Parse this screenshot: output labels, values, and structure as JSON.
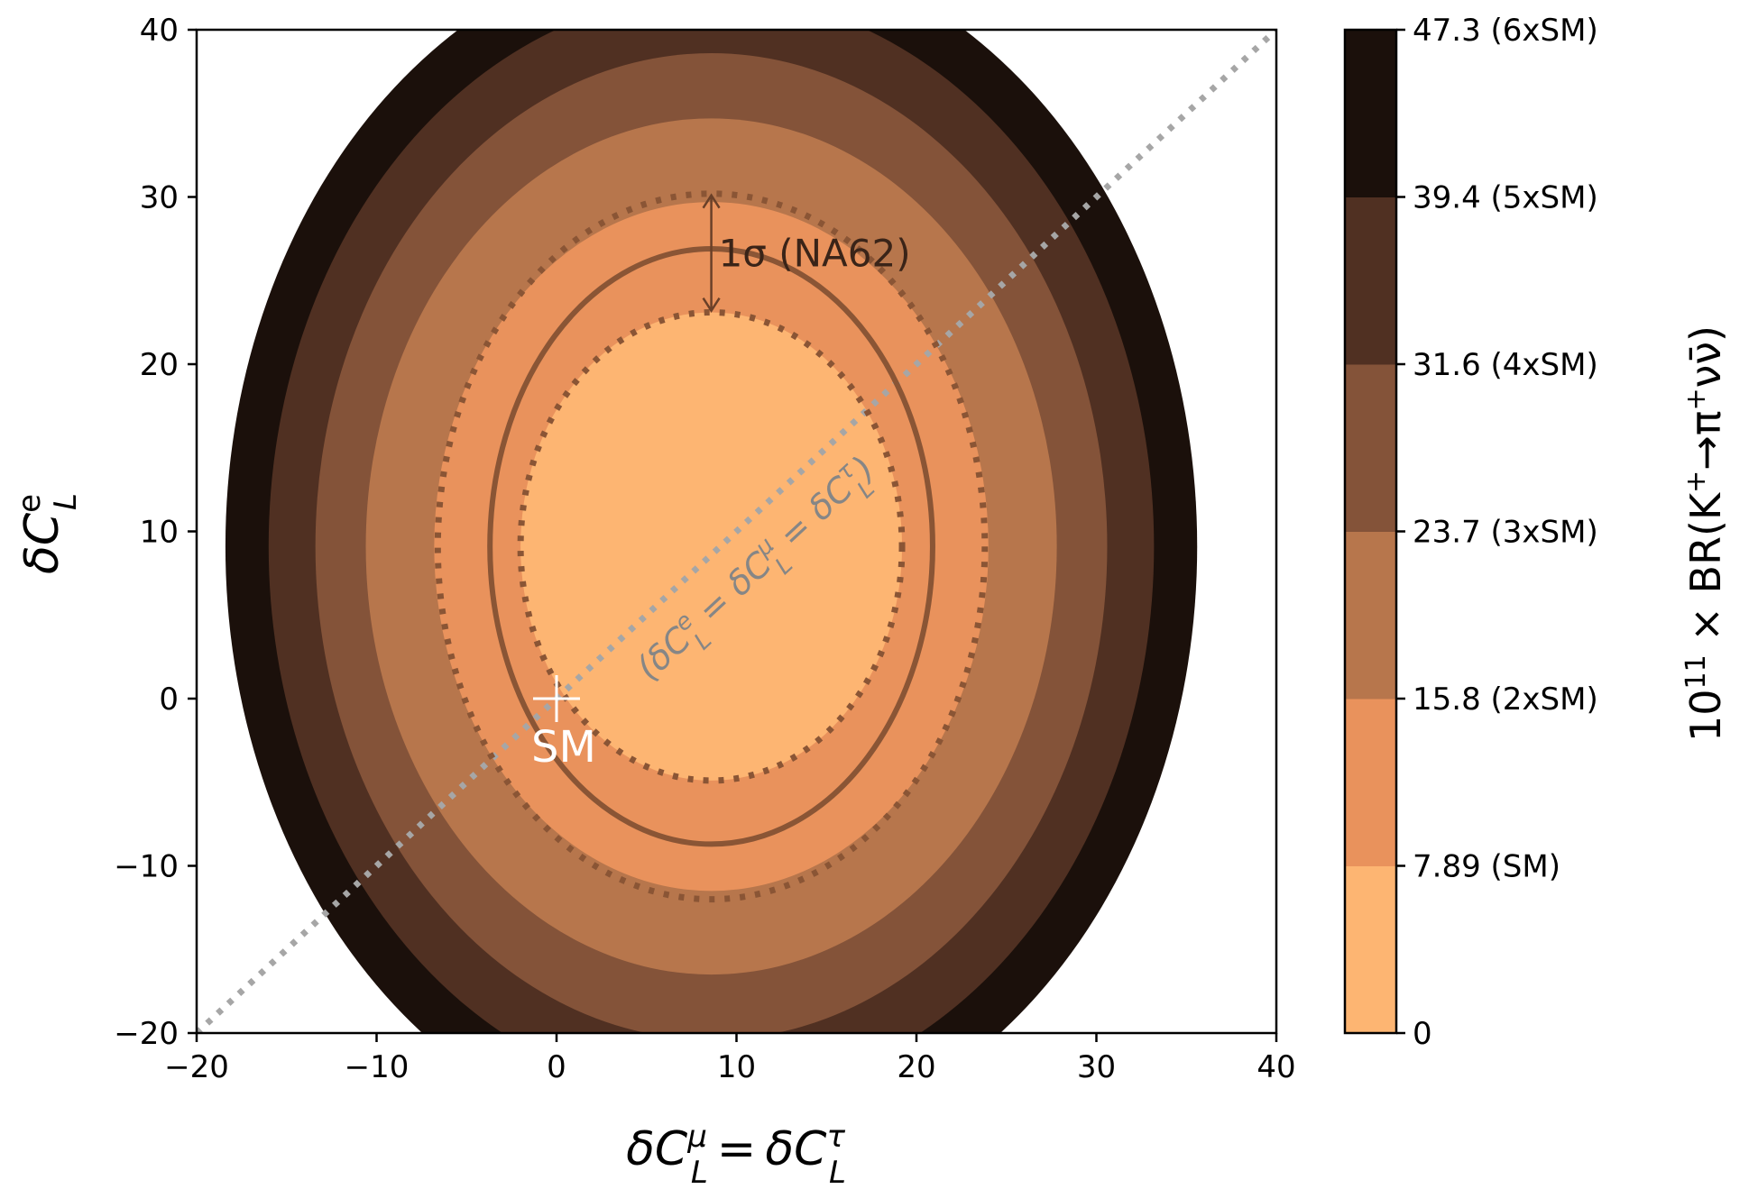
{
  "chart_data": {
    "type": "contour",
    "title": "",
    "x_axis": {
      "label_symbol": "δC",
      "label_superscript": "μ",
      "label_subscript": "L",
      "label_equals": "=",
      "label_symbol2": "δC",
      "label_superscript2": "τ",
      "label_subscript2": "L",
      "range": [
        -20,
        40
      ],
      "ticks": [
        -20,
        -10,
        0,
        10,
        20,
        30,
        40
      ],
      "tick_labels": [
        "−20",
        "−10",
        "0",
        "10",
        "20",
        "30",
        "40"
      ]
    },
    "y_axis": {
      "label_symbol": "δC",
      "label_superscript": "e",
      "label_subscript": "L",
      "range": [
        -20,
        40
      ],
      "ticks": [
        -20,
        -10,
        0,
        10,
        20,
        30,
        40
      ],
      "tick_labels": [
        "−20",
        "−10",
        "0",
        "10",
        "20",
        "30",
        "40"
      ]
    },
    "center": {
      "x": 8.6,
      "y": 9.1
    },
    "filled_levels": [
      {
        "br_range": [
          0,
          7.89
        ],
        "color": "#fdb572",
        "x_semi": 10.6,
        "y_semi": 14.0
      },
      {
        "br_range": [
          7.89,
          15.8
        ],
        "color": "#e9925c",
        "x_semi": 15.4,
        "y_semi": 20.6
      },
      {
        "br_range": [
          15.8,
          23.7
        ],
        "color": "#b7764c",
        "x_semi": 19.2,
        "y_semi": 25.6
      },
      {
        "br_range": [
          23.7,
          31.6
        ],
        "color": "#845339",
        "x_semi": 22.0,
        "y_semi": 29.5
      },
      {
        "br_range": [
          31.6,
          39.4
        ],
        "color": "#503022",
        "x_semi": 24.6,
        "y_semi": 33.0
      },
      {
        "br_range": [
          39.4,
          47.3
        ],
        "color": "#1b100b",
        "x_semi": 27.0,
        "y_semi": 36.2
      }
    ],
    "na62_central": {
      "x_semi": 12.3,
      "y_semi": 17.8,
      "color": "#8a5535",
      "style": "solid"
    },
    "na62_band": [
      {
        "x_semi": 10.6,
        "y_semi": 14.0,
        "color": "#8a5535",
        "style": "dotted"
      },
      {
        "x_semi": 15.2,
        "y_semi": 21.1,
        "color": "#8a5535",
        "style": "dotted"
      }
    ],
    "sigma_arrow": {
      "x": 8.6,
      "y_from": 23.2,
      "y_to": 30.1,
      "label": "1σ (NA62)",
      "color": "#6a4028"
    },
    "diagonal": {
      "from": [
        -20,
        -20
      ],
      "to": [
        40,
        40
      ],
      "color": "#a6a6a6",
      "style": "dotted",
      "label": "(δC^e_L = δC^μ_L = δC^τ_L)",
      "label_parts": [
        "(δC",
        "e",
        "L",
        " = δC",
        "μ",
        "L",
        " = δC",
        "τ",
        "L",
        ")"
      ],
      "label_color": "#868686"
    },
    "sm_point": {
      "x": 0,
      "y": 0,
      "label": "SM",
      "color": "#ffffff"
    },
    "colorbar": {
      "title_prefix": "10",
      "title_exponent": "11",
      "title_rest": " × BR(K",
      "title_sup1": "+",
      "title_arrow": "→π",
      "title_sup2": "+",
      "title_end": "νν̄)",
      "ticks": [
        0,
        7.89,
        15.8,
        23.7,
        31.6,
        39.4,
        47.3
      ],
      "tick_labels": [
        "0",
        "7.89 (SM)",
        "15.8 (2xSM)",
        "23.7 (3xSM)",
        "31.6 (4xSM)",
        "39.4 (5xSM)",
        "47.3 (6xSM)"
      ],
      "colors": [
        "#fdb572",
        "#e9925c",
        "#b7764c",
        "#845339",
        "#503022",
        "#1b100b"
      ]
    }
  }
}
